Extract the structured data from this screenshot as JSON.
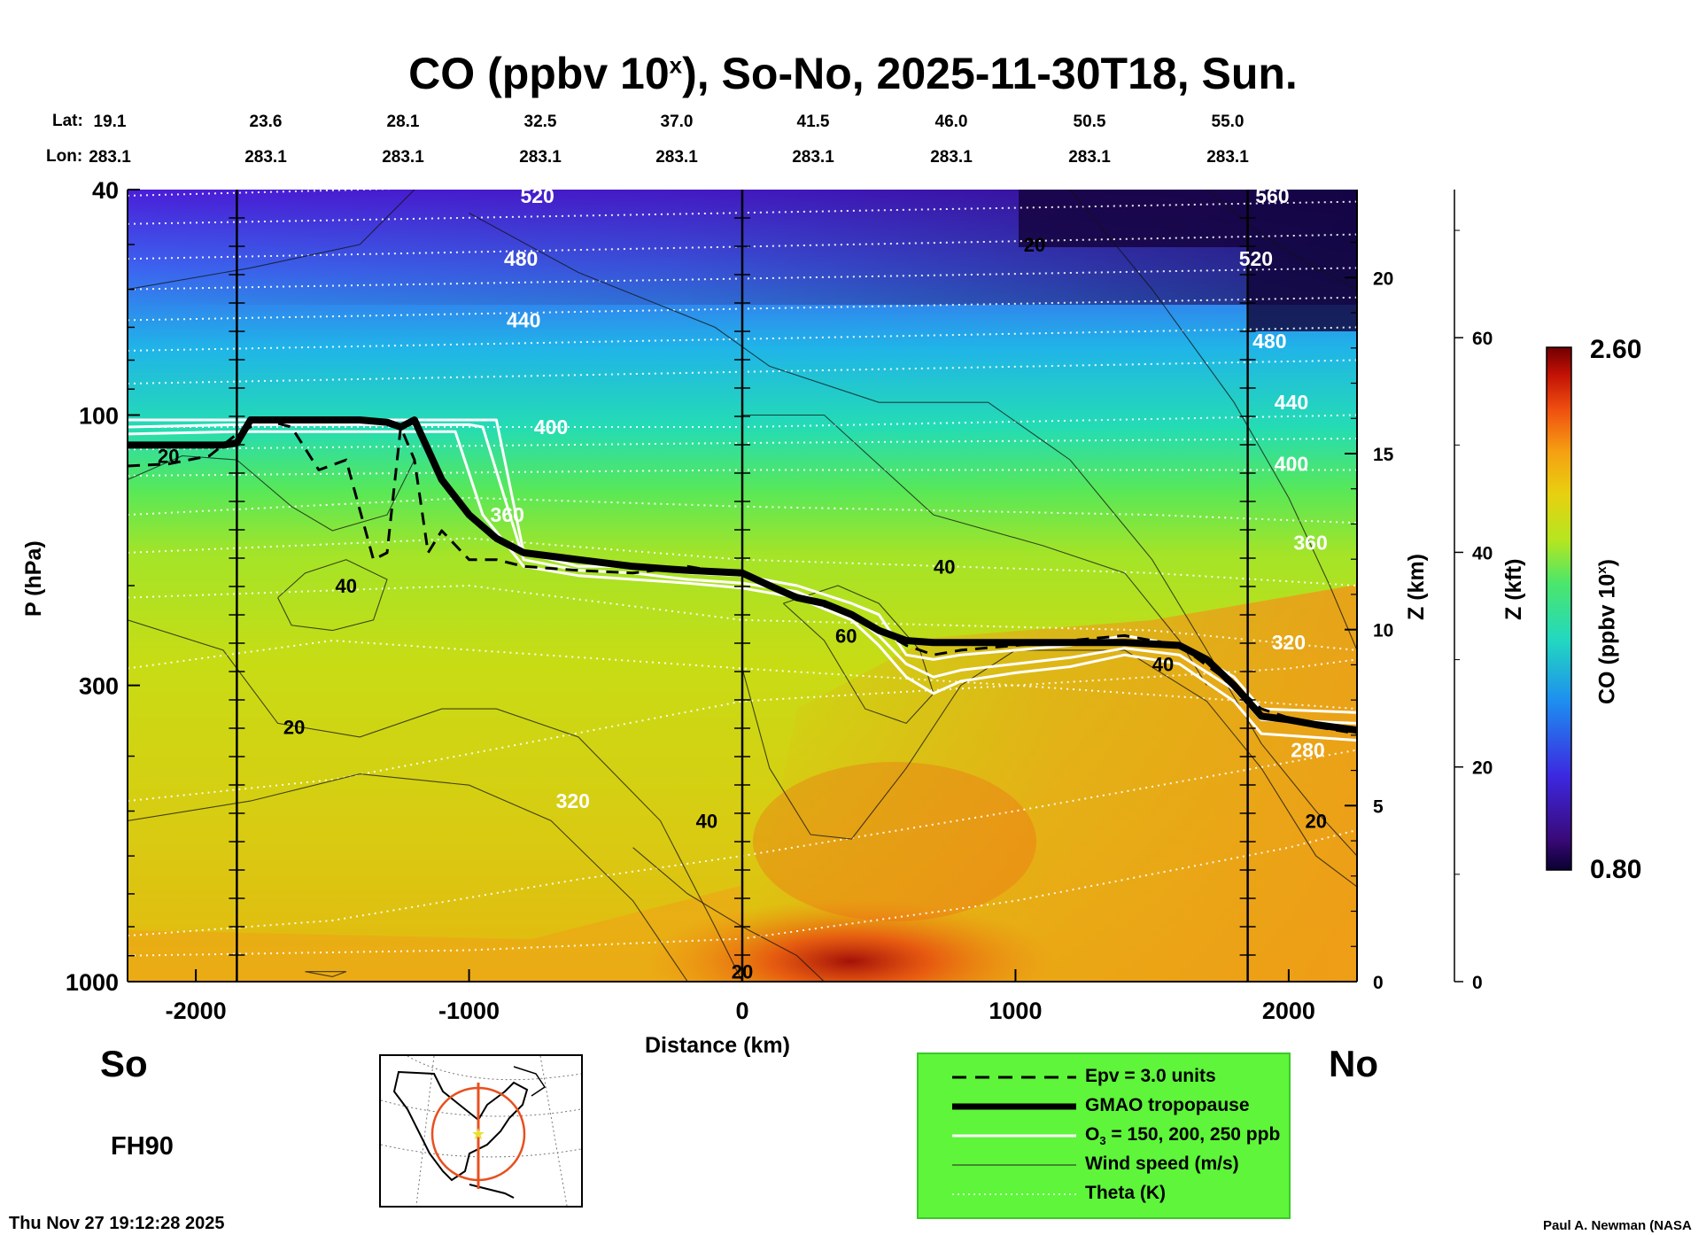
{
  "title_main": "CO (ppbv 10",
  "title_sup": "x",
  "title_rest": "), So-No, 2025-11-30T18, Sun.",
  "lat_label": "Lat:",
  "lon_label": "Lon:",
  "lats": [
    "19.1",
    "23.6",
    "28.1",
    "32.5",
    "37.0",
    "41.5",
    "46.0",
    "50.5",
    "55.0"
  ],
  "lons": [
    "283.1",
    "283.1",
    "283.1",
    "283.1",
    "283.1",
    "283.1",
    "283.1",
    "283.1",
    "283.1"
  ],
  "y_axis_label": "P (hPa)",
  "x_axis_label": "Distance (km)",
  "z_km_label": "Z (km)",
  "z_kft_label": "Z (kft)",
  "colorbar_label_main": "CO (ppbv 10",
  "colorbar_label_sup": "x",
  "colorbar_label_end": ")",
  "colorbar_max": "2.60",
  "colorbar_min": "0.80",
  "so_label": "So",
  "no_label": "No",
  "forecast_hour": "FH90",
  "timestamp": "Thu Nov 27 19:12:28 2025",
  "credit": "Paul A. Newman (NASA",
  "legend": [
    {
      "style": "dashed",
      "label": "Epv = 3.0 units"
    },
    {
      "style": "thick",
      "label": "GMAO tropopause"
    },
    {
      "style": "white",
      "label_main": "O",
      "label_sub": "3",
      "label_rest": " = 150, 200, 250 ppb"
    },
    {
      "style": "thin",
      "label": "Wind speed (m/s)"
    },
    {
      "style": "dotted",
      "label": "Theta (K)"
    }
  ],
  "colors": {
    "legend_bg": "#5ef53a",
    "map_track": "#e8501e"
  },
  "chart_data": {
    "type": "heatmap",
    "title": "CO (ppbv 10^x), So-No, 2025-11-30T18, Sun.",
    "xlabel": "Distance (km)",
    "ylabel": "P (hPa)",
    "xlim": [
      -2250,
      2250
    ],
    "ylim": [
      1000,
      40
    ],
    "yscale": "log",
    "x_ticks": [
      -2000,
      -1000,
      0,
      1000,
      2000
    ],
    "x_tick_labels": [
      "-2000",
      "-1000",
      "0",
      "1000",
      "2000"
    ],
    "y_ticks": [
      40,
      100,
      300,
      1000
    ],
    "y_tick_labels": [
      "40",
      "100",
      "300",
      "1000"
    ],
    "z_km_ticks": [
      0,
      5,
      10,
      15,
      20
    ],
    "z_km_tick_labels": [
      "0",
      "5",
      "10",
      "15",
      "20"
    ],
    "z_kft_ticks": [
      0,
      20,
      40,
      60
    ],
    "z_kft_tick_labels": [
      "0",
      "20",
      "40",
      "60"
    ],
    "vertical_marker_x": [
      -1850,
      0,
      1850
    ],
    "colorbar": {
      "min": 0.8,
      "max": 2.6
    },
    "theta_levels": [
      {
        "value": 520,
        "label": "520",
        "label_x": -750
      },
      {
        "value": 480,
        "label": "480",
        "label_x": -810
      },
      {
        "value": 440,
        "label": "440",
        "label_x": -800
      },
      {
        "value": 400,
        "label": "400",
        "label_x": -700
      },
      {
        "value": 360,
        "label": "360",
        "label_x": -860
      },
      {
        "value": 320,
        "label": "320",
        "label_x": -620
      },
      {
        "value": 560,
        "label": "560",
        "label_x": 1940
      },
      {
        "value": 520,
        "label": "520",
        "label_x": 1880
      },
      {
        "value": 480,
        "label": "480",
        "label_x": 1930
      },
      {
        "value": 440,
        "label": "440",
        "label_x": 2010
      },
      {
        "value": 400,
        "label": "400",
        "label_x": 2010
      },
      {
        "value": 360,
        "label": "360",
        "label_x": 2080
      },
      {
        "value": 320,
        "label": "320",
        "label_x": 2000
      },
      {
        "value": 280,
        "label": "280",
        "label_x": 2070
      }
    ],
    "wind_labels": [
      {
        "label": "20",
        "x": -2100,
        "p": 118
      },
      {
        "label": "40",
        "x": -1450,
        "p": 200
      },
      {
        "label": "20",
        "x": -1640,
        "p": 355
      },
      {
        "label": "40",
        "x": -130,
        "p": 520
      },
      {
        "label": "60",
        "x": 380,
        "p": 245
      },
      {
        "label": "40",
        "x": 740,
        "p": 185
      },
      {
        "label": "40",
        "x": 1540,
        "p": 275
      },
      {
        "label": "20",
        "x": 1070,
        "p": 50
      },
      {
        "label": "20",
        "x": 2100,
        "p": 520
      },
      {
        "label": "20",
        "x": 0,
        "p": 960
      }
    ],
    "gmao_tropopause": {
      "x": [
        -2250,
        -1900,
        -1850,
        -1800,
        -1700,
        -1600,
        -1500,
        -1400,
        -1300,
        -1250,
        -1200,
        -1100,
        -1000,
        -900,
        -800,
        -600,
        -400,
        -200,
        0,
        100,
        200,
        300,
        400,
        500,
        600,
        700,
        800,
        900,
        1000,
        1200,
        1400,
        1600,
        1700,
        1800,
        1900,
        2000,
        2100,
        2250
      ],
      "p": [
        113,
        113,
        112,
        102,
        102,
        102,
        102,
        102,
        103,
        105,
        102,
        130,
        150,
        165,
        175,
        180,
        185,
        188,
        190,
        200,
        210,
        215,
        225,
        240,
        250,
        252,
        252,
        252,
        252,
        252,
        252,
        255,
        270,
        300,
        340,
        345,
        352,
        360
      ]
    },
    "epv_3": {
      "x": [
        -2250,
        -2100,
        -1950,
        -1850,
        -1750,
        -1650,
        -1550,
        -1450,
        -1350,
        -1300,
        -1250,
        -1200,
        -1150,
        -1100,
        -1000,
        -900,
        -800,
        -600,
        -400,
        -200,
        0,
        200,
        400,
        600,
        700,
        800,
        1000,
        1200,
        1400,
        1600,
        1800,
        1900,
        2100,
        2250
      ],
      "p": [
        123,
        122,
        118,
        108,
        102,
        105,
        125,
        120,
        180,
        175,
        105,
        120,
        175,
        160,
        180,
        180,
        185,
        188,
        190,
        185,
        192,
        210,
        225,
        255,
        265,
        260,
        255,
        250,
        245,
        255,
        300,
        330,
        355,
        365
      ]
    },
    "o3_contours": [
      {
        "ppb": 150,
        "x": [
          -2250,
          -1850,
          -1000,
          -900,
          -800,
          -600,
          -400,
          -200,
          0,
          200,
          400,
          500,
          600,
          700,
          800,
          1000,
          1200,
          1400,
          1600,
          1800,
          1900,
          2250
        ],
        "p": [
          102,
          102,
          102,
          102,
          175,
          185,
          185,
          190,
          192,
          200,
          215,
          225,
          265,
          270,
          265,
          260,
          255,
          245,
          255,
          290,
          330,
          335
        ]
      },
      {
        "ppb": 200,
        "x": [
          -2250,
          -1850,
          -1000,
          -950,
          -800,
          -600,
          -400,
          -200,
          0,
          200,
          400,
          500,
          600,
          700,
          800,
          1000,
          1200,
          1400,
          1600,
          1800,
          1900,
          2250
        ],
        "p": [
          105,
          104,
          104,
          105,
          180,
          188,
          190,
          195,
          198,
          205,
          225,
          245,
          275,
          290,
          282,
          275,
          268,
          258,
          265,
          305,
          345,
          350
        ]
      },
      {
        "ppb": 250,
        "x": [
          -2250,
          -1850,
          -1050,
          -950,
          -800,
          -600,
          -400,
          -200,
          0,
          200,
          400,
          500,
          600,
          700,
          800,
          1000,
          1200,
          1400,
          1600,
          1800,
          1900,
          2250
        ],
        "p": [
          108,
          107,
          107,
          150,
          185,
          192,
          195,
          198,
          202,
          210,
          230,
          255,
          290,
          310,
          295,
          285,
          278,
          265,
          275,
          320,
          365,
          375
        ]
      }
    ]
  }
}
